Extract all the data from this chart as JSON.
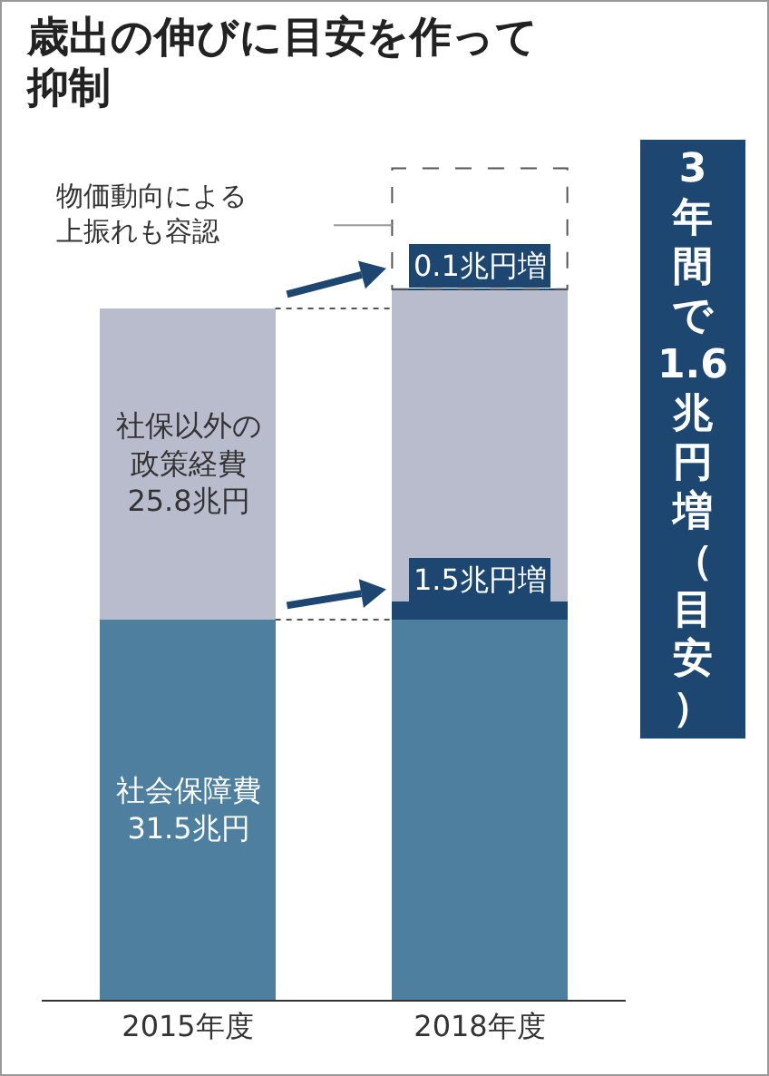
{
  "chart_data": {
    "type": "bar",
    "stacked": true,
    "title": "歳出の伸びに目安を作って抑制",
    "categories": [
      "2015年度",
      "2018年度"
    ],
    "series": [
      {
        "name": "社会保障費",
        "color": "#4e7f9f",
        "values": [
          31.5,
          31.5
        ],
        "value_labels": [
          "31.5兆円",
          null
        ]
      },
      {
        "color": "#1d4670",
        "values": [
          null,
          1.5
        ],
        "value_labels": [
          null,
          "1.5兆円増"
        ]
      },
      {
        "name": "社保以外の政策経費",
        "color": "#b8bccd",
        "values": [
          25.8,
          25.8
        ],
        "value_labels": [
          "25.8兆円",
          null
        ]
      },
      {
        "color": "#1d4670",
        "values": [
          null,
          0.1
        ],
        "value_labels": [
          null,
          "0.1兆円増"
        ]
      }
    ],
    "annotations": [
      "物価動向による上振れも容認",
      "3年間で1.6兆円増（目安）"
    ]
  }
}
